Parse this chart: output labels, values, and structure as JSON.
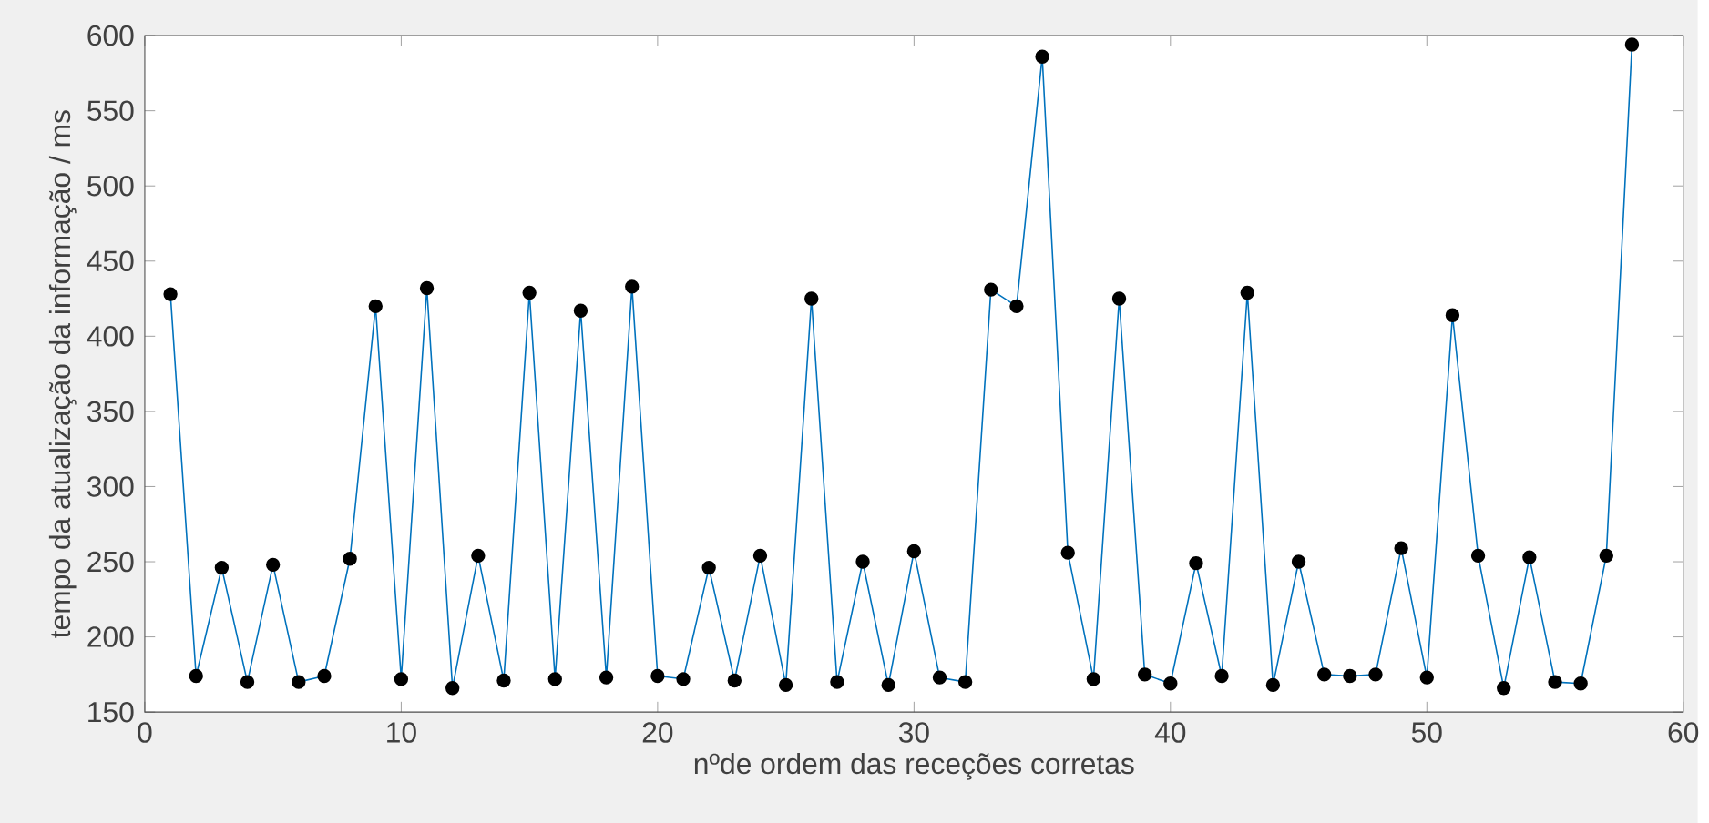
{
  "chart_data": {
    "type": "line",
    "xlabel": "nºde ordem das receções corretas",
    "ylabel": "tempo da atualização da informação / ms",
    "x": [
      1,
      2,
      3,
      4,
      5,
      6,
      7,
      8,
      9,
      10,
      11,
      12,
      13,
      14,
      15,
      16,
      17,
      18,
      19,
      20,
      21,
      22,
      23,
      24,
      25,
      26,
      27,
      28,
      29,
      30,
      31,
      32,
      33,
      34,
      35,
      36,
      37,
      38,
      39,
      40,
      41,
      42,
      43,
      44,
      45,
      46,
      47,
      48,
      49,
      50,
      51,
      52,
      53,
      54,
      55,
      56,
      57,
      58
    ],
    "series": [
      {
        "color": "#0072bd",
        "values": [
          428,
          174,
          246,
          170,
          248,
          170,
          174,
          252,
          420,
          172,
          432,
          166,
          254,
          171,
          429,
          172,
          417,
          173,
          433,
          174,
          172,
          246,
          171,
          254,
          168,
          425,
          170,
          250,
          168,
          257,
          173,
          170,
          431,
          420,
          586,
          256,
          172,
          425,
          175,
          169,
          249,
          174,
          429,
          168,
          250,
          175,
          174,
          175,
          259,
          173,
          414,
          254,
          166,
          253,
          170,
          169,
          254,
          594
        ]
      }
    ],
    "marker": "circle",
    "line_style": "solid",
    "grid": false,
    "xlim": [
      0,
      60
    ],
    "ylim": [
      150,
      600
    ],
    "xticks": [
      0,
      10,
      20,
      30,
      40,
      50,
      60
    ],
    "yticks": [
      150,
      200,
      250,
      300,
      350,
      400,
      450,
      500,
      550,
      600
    ]
  }
}
